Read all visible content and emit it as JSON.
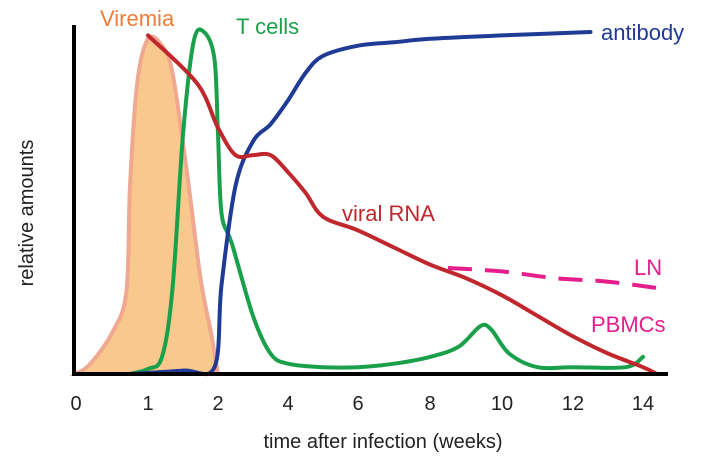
{
  "chart_data": {
    "type": "line",
    "title": "",
    "xlabel": "time after infection (weeks)",
    "ylabel": "relative amounts",
    "xlim": [
      0,
      15
    ],
    "ylim": [
      0,
      100
    ],
    "x_ticks": [
      {
        "value": 0,
        "label": "0"
      },
      {
        "value": 1,
        "label": "1"
      },
      {
        "value": 2,
        "label": "2"
      },
      {
        "value": 4,
        "label": "4"
      },
      {
        "value": 6,
        "label": "6"
      },
      {
        "value": 8,
        "label": "8"
      },
      {
        "value": 10,
        "label": "10"
      },
      {
        "value": 12,
        "label": "12"
      },
      {
        "value": 14,
        "label": "14"
      }
    ],
    "grid": false,
    "legend": "none",
    "series": [
      {
        "name": "Viremia",
        "kind": "filled-area",
        "color": "#f0a890",
        "fill": "#f8c88c",
        "points": [
          [
            0,
            0
          ],
          [
            0.2,
            3
          ],
          [
            0.5,
            12
          ],
          [
            0.7,
            24
          ],
          [
            0.75,
            55
          ],
          [
            0.85,
            85
          ],
          [
            1.0,
            98
          ],
          [
            1.2,
            96
          ],
          [
            1.35,
            88
          ],
          [
            1.55,
            60
          ],
          [
            1.75,
            28
          ],
          [
            1.9,
            12
          ],
          [
            2.0,
            0
          ]
        ]
      },
      {
        "name": "T cells",
        "color": "#1aa04b",
        "points": [
          [
            0.75,
            0
          ],
          [
            1.0,
            1.5
          ],
          [
            1.2,
            5
          ],
          [
            1.35,
            25
          ],
          [
            1.5,
            70
          ],
          [
            1.65,
            97
          ],
          [
            1.8,
            100
          ],
          [
            1.95,
            92
          ],
          [
            2.0,
            70
          ],
          [
            2.1,
            47
          ],
          [
            2.4,
            38
          ],
          [
            3.0,
            17
          ],
          [
            3.5,
            6
          ],
          [
            4.0,
            3
          ],
          [
            5.0,
            2
          ],
          [
            6.0,
            2
          ],
          [
            7.0,
            3
          ],
          [
            8.0,
            5
          ],
          [
            8.8,
            8
          ],
          [
            9.4,
            14
          ],
          [
            9.7,
            13
          ],
          [
            10.2,
            6
          ],
          [
            11.0,
            2
          ],
          [
            12.0,
            2
          ],
          [
            13.5,
            2
          ],
          [
            14.0,
            5
          ]
        ]
      },
      {
        "name": "antibody",
        "color": "#1f3b96",
        "points": [
          [
            0.75,
            0
          ],
          [
            1.5,
            1
          ],
          [
            1.95,
            2
          ],
          [
            2.1,
            26
          ],
          [
            2.5,
            55
          ],
          [
            3.0,
            68
          ],
          [
            3.5,
            73
          ],
          [
            4.0,
            80
          ],
          [
            4.5,
            88
          ],
          [
            5.0,
            93
          ],
          [
            6.0,
            96
          ],
          [
            7.0,
            97
          ],
          [
            8.0,
            98
          ],
          [
            10.0,
            99
          ],
          [
            12.5,
            100
          ]
        ]
      },
      {
        "name": "viral RNA",
        "color": "#c0272d",
        "points": [
          [
            1.0,
            99
          ],
          [
            1.7,
            85
          ],
          [
            2.0,
            72
          ],
          [
            2.5,
            64
          ],
          [
            3.0,
            64
          ],
          [
            3.5,
            64
          ],
          [
            4.0,
            59
          ],
          [
            4.5,
            53
          ],
          [
            5.0,
            46
          ],
          [
            6.0,
            42
          ],
          [
            7.0,
            37
          ],
          [
            8.0,
            32
          ],
          [
            9.0,
            28
          ],
          [
            10.0,
            23
          ],
          [
            11.0,
            17
          ],
          [
            12.0,
            11
          ],
          [
            13.0,
            6
          ],
          [
            14.0,
            2
          ],
          [
            14.4,
            0
          ]
        ]
      },
      {
        "name": "LN",
        "dashed": true,
        "color": "#e61e8c",
        "points": [
          [
            8.5,
            31
          ],
          [
            10.0,
            30
          ],
          [
            11.5,
            28
          ],
          [
            13.0,
            27
          ],
          [
            14.5,
            25
          ]
        ]
      }
    ],
    "annotations": [
      {
        "text": "Viremia",
        "color": "#f07c3a"
      },
      {
        "text": "T cells",
        "color": "#1aa04b"
      },
      {
        "text": "antibody",
        "color": "#1f3b96"
      },
      {
        "text": "viral RNA",
        "color": "#c0272d"
      },
      {
        "text": "LN",
        "color": "#e61e8c"
      },
      {
        "text": "PBMCs",
        "color": "#e61e8c"
      }
    ]
  }
}
